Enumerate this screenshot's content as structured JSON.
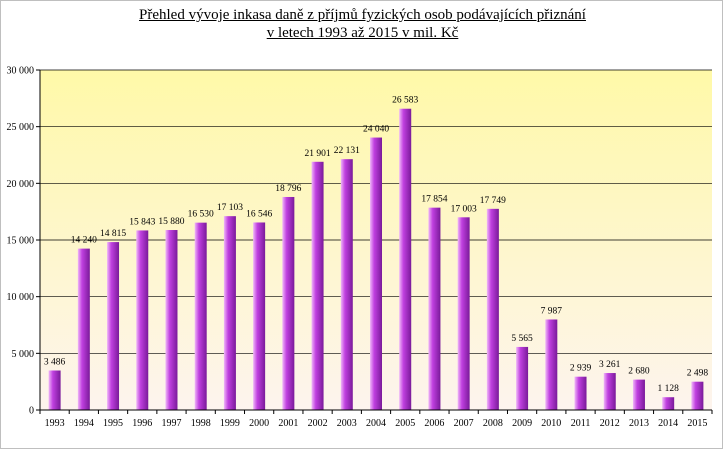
{
  "chart_data": {
    "type": "bar",
    "title_line1": "Přehled vývoje inkasa daně z příjmů fyzických osob podávajících přiznání",
    "title_line2": "v letech 1993 až 2015 v mil. Kč",
    "xlabel": "",
    "ylabel": "",
    "ylim": [
      0,
      30000
    ],
    "yticks": [
      0,
      5000,
      10000,
      15000,
      20000,
      25000,
      30000
    ],
    "ytick_labels": [
      "0",
      "5 000",
      "10 000",
      "15 000",
      "20 000",
      "25 000",
      "30 000"
    ],
    "grid": true,
    "legend": "none",
    "categories": [
      "1993",
      "1994",
      "1995",
      "1996",
      "1997",
      "1998",
      "1999",
      "2000",
      "2001",
      "2002",
      "2003",
      "2004",
      "2005",
      "2006",
      "2007",
      "2008",
      "2009",
      "2010",
      "2011",
      "2012",
      "2013",
      "2014",
      "2015"
    ],
    "values": [
      3486,
      14240,
      14815,
      15843,
      15880,
      16530,
      17103,
      16546,
      18796,
      21901,
      22131,
      24040,
      26583,
      17854,
      17003,
      17749,
      5565,
      7987,
      2939,
      3261,
      2680,
      1128,
      2498
    ],
    "value_labels": [
      "3 486",
      "14 240",
      "14 815",
      "15 843",
      "15 880",
      "16 530",
      "17 103",
      "16 546",
      "18 796",
      "21 901",
      "22 131",
      "24 040",
      "26 583",
      "17 854",
      "17 003",
      "17 749",
      "5 565",
      "7 987",
      "2 939",
      "3 261",
      "2 680",
      "1 128",
      "2 498"
    ],
    "colors": {
      "bar_light": "#f0b8f8",
      "bar_mid": "#c040e0",
      "bar_dark": "#7a1a9a",
      "plot_top": "#fff9a8",
      "plot_bottom": "#fdf4ee",
      "gridline": "#000000"
    }
  }
}
